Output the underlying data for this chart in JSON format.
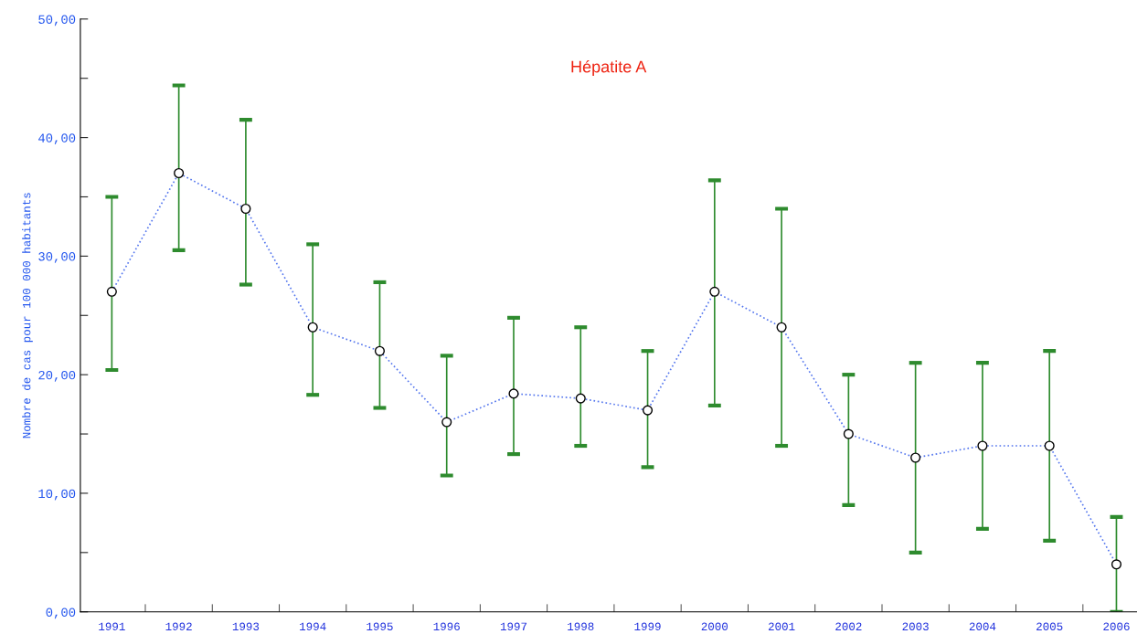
{
  "chart_data": {
    "type": "line",
    "title": "Hépatite A",
    "ylabel": "Nombre de cas pour 100 000 habitants",
    "categories": [
      "1991",
      "1992",
      "1993",
      "1994",
      "1995",
      "1996",
      "1997",
      "1998",
      "1999",
      "2000",
      "2001",
      "2002",
      "2003",
      "2004",
      "2005",
      "2006"
    ],
    "series": [
      {
        "color": "#5577ee",
        "values": [
          27,
          37,
          34,
          24,
          22,
          16,
          18.4,
          18,
          17,
          27,
          24,
          15,
          13,
          14,
          14,
          4
        ],
        "errors": [
          [
            20.4,
            35
          ],
          [
            30.5,
            44.4
          ],
          [
            27.6,
            41.5
          ],
          [
            18.3,
            31
          ],
          [
            17.2,
            27.8
          ],
          [
            11.5,
            21.6
          ],
          [
            13.3,
            24.8
          ],
          [
            14,
            24
          ],
          [
            12.2,
            22
          ],
          [
            17.4,
            36.4
          ],
          [
            14,
            34
          ],
          [
            9,
            20
          ],
          [
            5,
            21
          ],
          [
            7,
            21
          ],
          [
            6,
            22
          ],
          [
            0,
            8
          ]
        ]
      }
    ],
    "ylim": [
      0,
      50
    ],
    "yticks": [
      {
        "value": 0,
        "label": "0,00"
      },
      {
        "value": 5,
        "label": null
      },
      {
        "value": 10,
        "label": "10,00"
      },
      {
        "value": 15,
        "label": null
      },
      {
        "value": 20,
        "label": "20,00"
      },
      {
        "value": 25,
        "label": null
      },
      {
        "value": 30,
        "label": "30,00"
      },
      {
        "value": 35,
        "label": null
      },
      {
        "value": 40,
        "label": "40,00"
      },
      {
        "value": 45,
        "label": null
      },
      {
        "value": 50,
        "label": "50,00"
      }
    ],
    "marker": "circle",
    "line_style": "dotted",
    "grid": false,
    "legend": false
  }
}
